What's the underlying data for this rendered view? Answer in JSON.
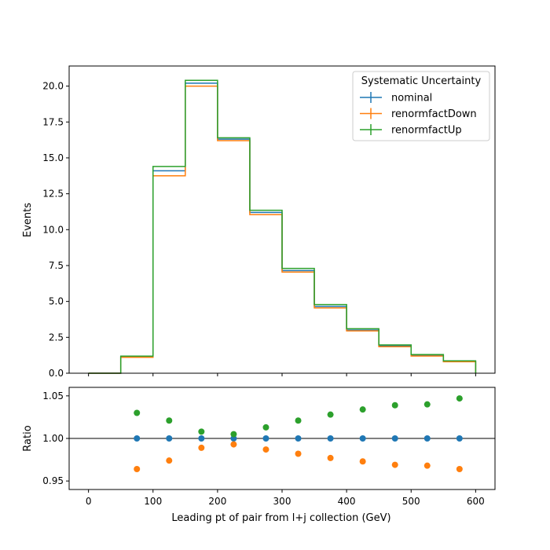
{
  "chart_data": [
    {
      "type": "line",
      "drawstyle": "steps",
      "ylabel": "Events",
      "xlim": [
        -30,
        630
      ],
      "ylim": [
        0,
        21.4
      ],
      "bin_edges": [
        0,
        50,
        100,
        150,
        200,
        250,
        300,
        350,
        400,
        450,
        500,
        550,
        600
      ],
      "yticks": [
        0.0,
        2.5,
        5.0,
        7.5,
        10.0,
        12.5,
        15.0,
        17.5,
        20.0
      ],
      "ytick_labels": [
        "0.0",
        "2.5",
        "5.0",
        "7.5",
        "10.0",
        "12.5",
        "15.0",
        "17.5",
        "20.0"
      ],
      "legend": {
        "title": "Systematic Uncertainty",
        "location": "top-right"
      },
      "series": [
        {
          "name": "nominal",
          "color": "#1f77b4",
          "values": [
            0.0,
            1.15,
            14.1,
            20.2,
            16.3,
            11.2,
            7.15,
            4.65,
            3.0,
            1.9,
            1.25,
            0.82
          ]
        },
        {
          "name": "renormfactDown",
          "color": "#ff7f0e",
          "values": [
            0.0,
            1.11,
            13.75,
            20.0,
            16.2,
            11.05,
            7.05,
            4.55,
            2.95,
            1.85,
            1.2,
            0.8
          ]
        },
        {
          "name": "renormfactUp",
          "color": "#2ca02c",
          "values": [
            0.0,
            1.19,
            14.4,
            20.4,
            16.4,
            11.35,
            7.3,
            4.78,
            3.1,
            1.97,
            1.3,
            0.86
          ]
        }
      ]
    },
    {
      "type": "scatter",
      "xlabel": "Leading pt of pair from l+j collection (GeV)",
      "ylabel": "Ratio",
      "xlim": [
        -30,
        630
      ],
      "ylim": [
        0.94,
        1.06
      ],
      "xticks": [
        0,
        100,
        200,
        300,
        400,
        500,
        600
      ],
      "xtick_labels": [
        "0",
        "100",
        "200",
        "300",
        "400",
        "500",
        "600"
      ],
      "yticks": [
        0.95,
        1.0,
        1.05
      ],
      "ytick_labels": [
        "0.95",
        "1.00",
        "1.05"
      ],
      "reference_line": 1.0,
      "x": [
        75,
        125,
        175,
        225,
        275,
        325,
        375,
        425,
        475,
        525,
        575
      ],
      "series": [
        {
          "name": "nominal",
          "color": "#1f77b4",
          "values": [
            1.0,
            1.0,
            1.0,
            1.0,
            1.0,
            1.0,
            1.0,
            1.0,
            1.0,
            1.0,
            1.0
          ]
        },
        {
          "name": "renormfactDown",
          "color": "#ff7f0e",
          "values": [
            0.964,
            0.974,
            0.989,
            0.993,
            0.987,
            0.982,
            0.977,
            0.973,
            0.969,
            0.968,
            0.964
          ]
        },
        {
          "name": "renormfactUp",
          "color": "#2ca02c",
          "values": [
            1.03,
            1.021,
            1.008,
            1.005,
            1.013,
            1.021,
            1.028,
            1.034,
            1.039,
            1.04,
            1.047
          ]
        }
      ]
    }
  ]
}
